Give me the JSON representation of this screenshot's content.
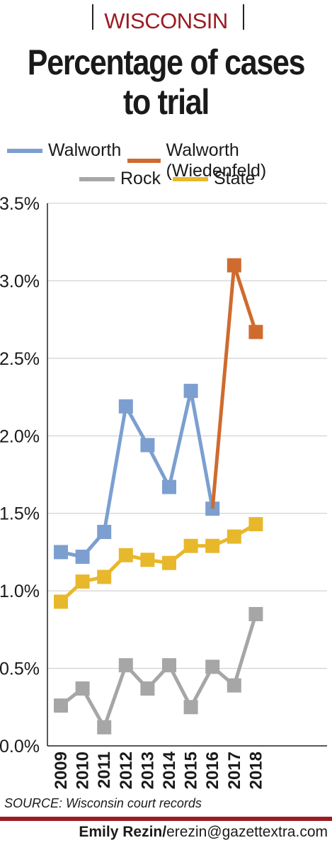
{
  "header": {
    "kicker": "WISCONSIN",
    "title_line1": "Percentage of cases",
    "title_line2": "to trial"
  },
  "legend": {
    "walworth": "Walworth",
    "wiedenfeld": "Walworth (Wiedenfeld)",
    "rock": "Rock",
    "state": "State"
  },
  "footer": {
    "source": "SOURCE: Wisconsin court records",
    "byline_name": "Emily Rezin/",
    "byline_email": "erezin@gazettextra.com"
  },
  "colors": {
    "walworth": "#7c9fd0",
    "wiedenfeld": "#cf6b2f",
    "rock": "#a6a6a6",
    "state": "#e8b82c",
    "accent": "#9b1c22"
  },
  "chart_data": {
    "type": "line",
    "title": "Percentage of cases to trial",
    "x": [
      "2009",
      "2010",
      "2011",
      "2012",
      "2013",
      "2014",
      "2015",
      "2016",
      "2017",
      "2018"
    ],
    "ylim": [
      0,
      3.5
    ],
    "yticks": [
      "0.0%",
      "0.5%",
      "1.0%",
      "1.5%",
      "2.0%",
      "2.5%",
      "3.0%",
      "3.5%"
    ],
    "grid": true,
    "legend_position": "top",
    "series": [
      {
        "name": "Walworth",
        "key": "walworth",
        "values": [
          1.25,
          1.22,
          1.38,
          2.19,
          1.94,
          1.67,
          2.29,
          1.53,
          null,
          null
        ]
      },
      {
        "name": "Walworth (Wiedenfeld)",
        "key": "wiedenfeld",
        "values": [
          null,
          null,
          null,
          null,
          null,
          null,
          null,
          1.53,
          3.1,
          2.67
        ]
      },
      {
        "name": "Rock",
        "key": "rock",
        "values": [
          0.26,
          0.37,
          0.12,
          0.52,
          0.37,
          0.52,
          0.25,
          0.51,
          0.39,
          0.85
        ]
      },
      {
        "name": "State",
        "key": "state",
        "values": [
          0.93,
          1.06,
          1.09,
          1.23,
          1.2,
          1.18,
          1.29,
          1.29,
          1.35,
          1.43
        ]
      }
    ]
  }
}
